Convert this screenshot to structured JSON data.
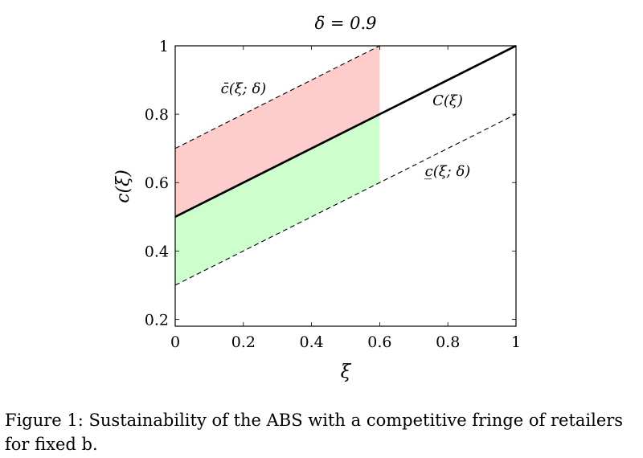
{
  "chart_data": {
    "type": "line",
    "title": "δ = 0.9",
    "xlabel": "ξ",
    "ylabel": "c(ξ)",
    "xlim": [
      0,
      1
    ],
    "ylim": [
      0.18,
      1
    ],
    "xticks": [
      0,
      0.2,
      0.4,
      0.6,
      0.8,
      1
    ],
    "xtick_labels": [
      "0",
      "0.2",
      "0.4",
      "0.6",
      "0.8",
      "1"
    ],
    "yticks": [
      0.2,
      0.4,
      0.6,
      0.8,
      1
    ],
    "ytick_labels": [
      "0.2",
      "0.4",
      "0.6",
      "0.8",
      "1"
    ],
    "grid": false,
    "series": [
      {
        "name": "C(ξ)",
        "style": "solid",
        "color": "#000000",
        "x": [
          0,
          1
        ],
        "y": [
          0.5,
          1.0
        ]
      },
      {
        "name": "c̄(ξ; δ)",
        "style": "dashed",
        "color": "#000000",
        "x": [
          0,
          0.6
        ],
        "y": [
          0.7,
          1.0
        ]
      },
      {
        "name": "c̲(ξ; δ)",
        "style": "dashed",
        "color": "#000000",
        "x": [
          0,
          1
        ],
        "y": [
          0.3,
          0.8
        ]
      }
    ],
    "regions": [
      {
        "fill": "#ffcccc",
        "x_range": [
          0,
          0.6
        ],
        "lower": "C(ξ)",
        "upper": "c̄(ξ; δ)"
      },
      {
        "fill": "#ccffcc",
        "x_range": [
          0,
          0.6
        ],
        "lower": "c̲(ξ; δ)",
        "upper": "C(ξ)"
      }
    ]
  },
  "caption": "Figure 1: Sustainability of the ABS with a competitive fringe of retailers for fixed b."
}
